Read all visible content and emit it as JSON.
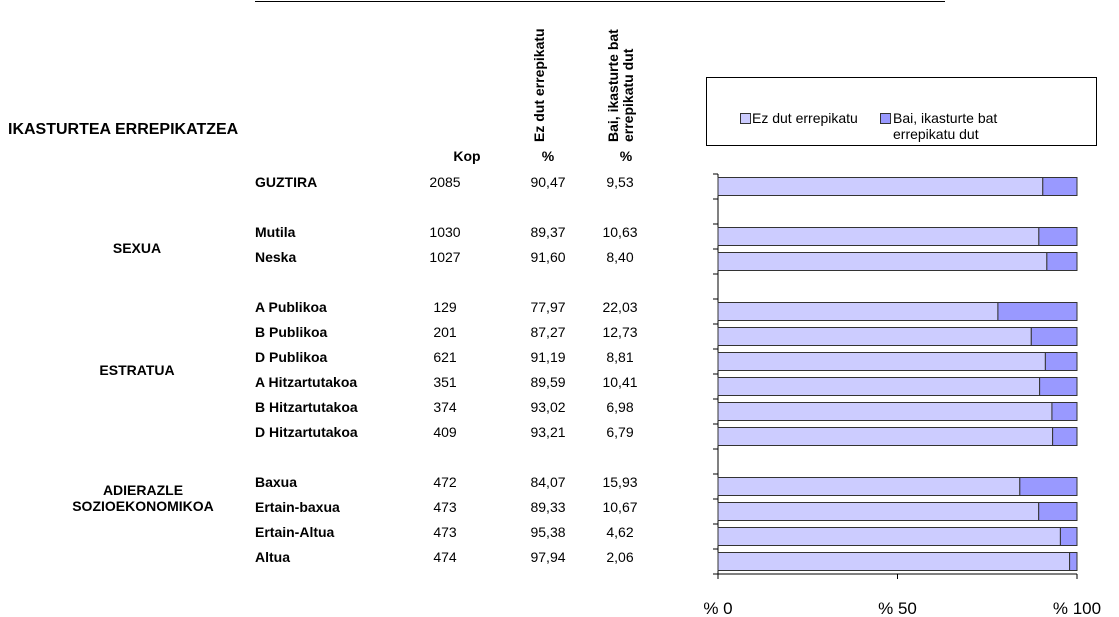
{
  "table": {
    "title": "IKASTURTEA ERREPIKATZEA",
    "headers": [
      "Kop",
      "%",
      "%"
    ],
    "groups": [
      "SEXUA",
      "ESTRATUA",
      "ADIERAZLE SOZIOEKONOMIKOA"
    ],
    "kop": [
      "2085",
      null,
      "1030",
      "1027",
      null,
      "129",
      "201",
      "621",
      "351",
      "374",
      "409",
      null,
      "472",
      "473",
      "473",
      "474"
    ]
  },
  "chart_data": {
    "type": "stacked_bar_horizontal",
    "categories": [
      "GUZTIRA",
      null,
      "Mutila",
      "Neska",
      null,
      "A Publikoa",
      "B Publikoa",
      "D Publikoa",
      "A Hitzartutakoa",
      "B Hitzartutakoa",
      "D Hitzartutakoa",
      null,
      "Baxua",
      "Ertain-baxua",
      "Ertain-Altua",
      "Altua"
    ],
    "series": [
      {
        "name": "Ez dut errepikatu",
        "color": "#ccccff",
        "values": [
          90.47,
          null,
          89.37,
          91.6,
          null,
          77.97,
          87.27,
          91.19,
          89.59,
          93.02,
          93.21,
          null,
          84.07,
          89.33,
          95.38,
          97.94
        ],
        "value_labels": [
          "90,47",
          null,
          "89,37",
          "91,60",
          null,
          "77,97",
          "87,27",
          "91,19",
          "89,59",
          "93,02",
          "93,21",
          null,
          "84,07",
          "89,33",
          "95,38",
          "97,94"
        ]
      },
      {
        "name": "Bai, ikasturte bat errepikatu dut",
        "color": "#9999ff",
        "values": [
          9.53,
          null,
          10.63,
          8.4,
          null,
          22.03,
          12.73,
          8.81,
          10.41,
          6.98,
          6.79,
          null,
          15.93,
          10.67,
          4.62,
          2.06
        ],
        "value_labels": [
          "9,53",
          null,
          "10,63",
          "8,40",
          null,
          "22,03",
          "12,73",
          "8,81",
          "10,41",
          "6,98",
          "6,79",
          null,
          "15,93",
          "10,67",
          "4,62",
          "2,06"
        ]
      }
    ],
    "xlim": [
      0,
      100
    ],
    "xticks": [
      {
        "value": 0,
        "label": "% 0"
      },
      {
        "value": 50,
        "label": "% 50"
      },
      {
        "value": 100,
        "label": "% 100"
      }
    ]
  }
}
